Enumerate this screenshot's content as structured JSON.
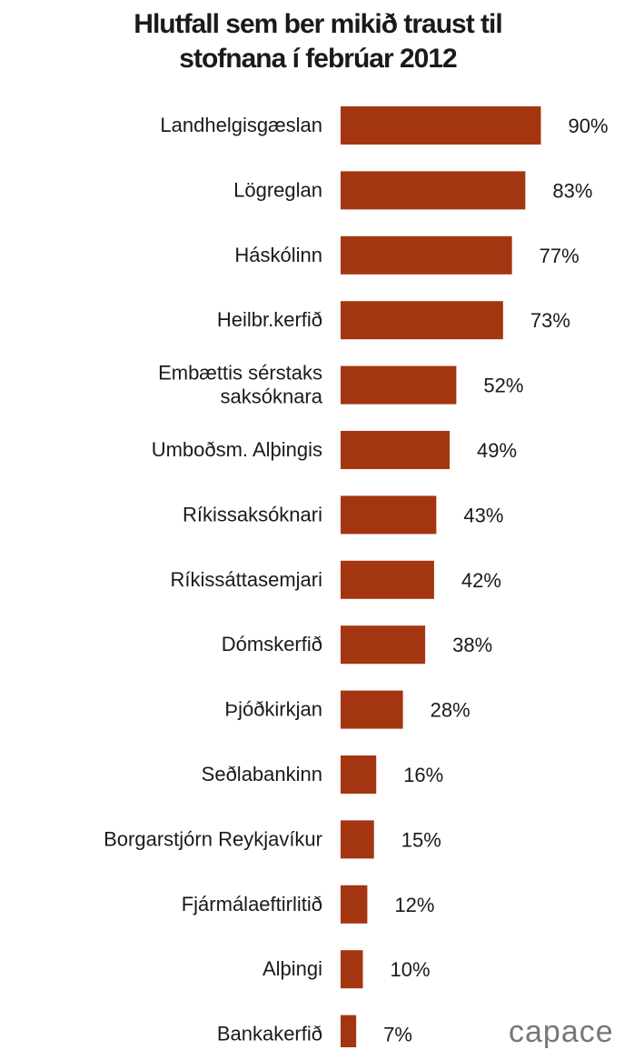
{
  "chart_data": {
    "type": "bar",
    "orientation": "horizontal",
    "title": "Hlutfall sem ber mikið traust til stofnana í febrúar 2012",
    "title_lines": [
      "Hlutfall sem ber mikið traust til",
      "stofnana í febrúar 2012"
    ],
    "categories": [
      [
        "Landhelgisgæslan"
      ],
      [
        "Lögreglan"
      ],
      [
        "Háskólinn"
      ],
      [
        "Heilbr.kerfið"
      ],
      [
        "Embættis sérstaks",
        "saksóknara"
      ],
      [
        "Umboðsm. Alþingis"
      ],
      [
        "Ríkissaksóknari"
      ],
      [
        "Ríkissáttasemjari"
      ],
      [
        "Dómskerfið"
      ],
      [
        "Þjóðkirkjan"
      ],
      [
        "Seðlabankinn"
      ],
      [
        "Borgarstjórn Reykjavíkur"
      ],
      [
        "Fjármálaeftirlitið"
      ],
      [
        "Alþingi"
      ],
      [
        "Bankakerfið"
      ]
    ],
    "values": [
      90,
      83,
      77,
      73,
      52,
      49,
      43,
      42,
      38,
      28,
      16,
      15,
      12,
      10,
      7
    ],
    "value_suffix": "%",
    "xlim": [
      0,
      100
    ],
    "grid": false,
    "legend": "none",
    "bar_color": "#a33610"
  },
  "watermark": "capace"
}
